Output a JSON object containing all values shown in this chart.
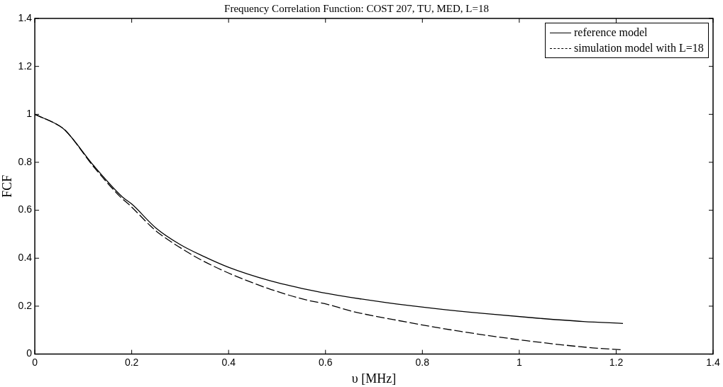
{
  "chart_data": {
    "type": "line",
    "title": "Frequency Correlation Function: COST 207, TU, MED, L=18",
    "xlabel": "υ [MHz]",
    "ylabel": "FCF",
    "xlim": [
      0,
      1.4
    ],
    "xticks": [
      0,
      0.2,
      0.4,
      0.6,
      0.8,
      1,
      1.2,
      1.4
    ],
    "ylim": [
      0,
      1.4
    ],
    "yticks": [
      0,
      0.2,
      0.4,
      0.6,
      0.8,
      1,
      1.2,
      1.4
    ],
    "grid": false,
    "legend": "top right",
    "marker": "none",
    "series": [
      {
        "name": "reference model",
        "color": "#000000",
        "line_style": "solid",
        "x": [
          0,
          0.05,
          0.063,
          0.122,
          0.181,
          0.2,
          0.25,
          0.3,
          0.349,
          0.4,
          0.482,
          0.565,
          0.623,
          0.725,
          0.827,
          0.929,
          1.031,
          1.132,
          1.214
        ],
        "values": [
          1,
          0.953,
          0.933,
          0.785,
          0.655,
          0.626,
          0.526,
          0.457,
          0.407,
          0.362,
          0.308,
          0.268,
          0.246,
          0.215,
          0.19,
          0.169,
          0.151,
          0.136,
          0.128
        ]
      },
      {
        "name": "simulation model with L=18",
        "color": "#000000",
        "line_style": "dashed",
        "x": [
          0,
          0.05,
          0.063,
          0.122,
          0.176,
          0.196,
          0.238,
          0.255,
          0.322,
          0.344,
          0.4,
          0.462,
          0.487,
          0.556,
          0.605,
          0.654,
          0.74,
          0.878,
          1.015,
          1.152,
          1.214
        ],
        "values": [
          1,
          0.953,
          0.933,
          0.78,
          0.657,
          0.621,
          0.536,
          0.506,
          0.417,
          0.392,
          0.338,
          0.288,
          0.27,
          0.228,
          0.207,
          0.179,
          0.144,
          0.095,
          0.056,
          0.026,
          0.018
        ]
      }
    ]
  }
}
